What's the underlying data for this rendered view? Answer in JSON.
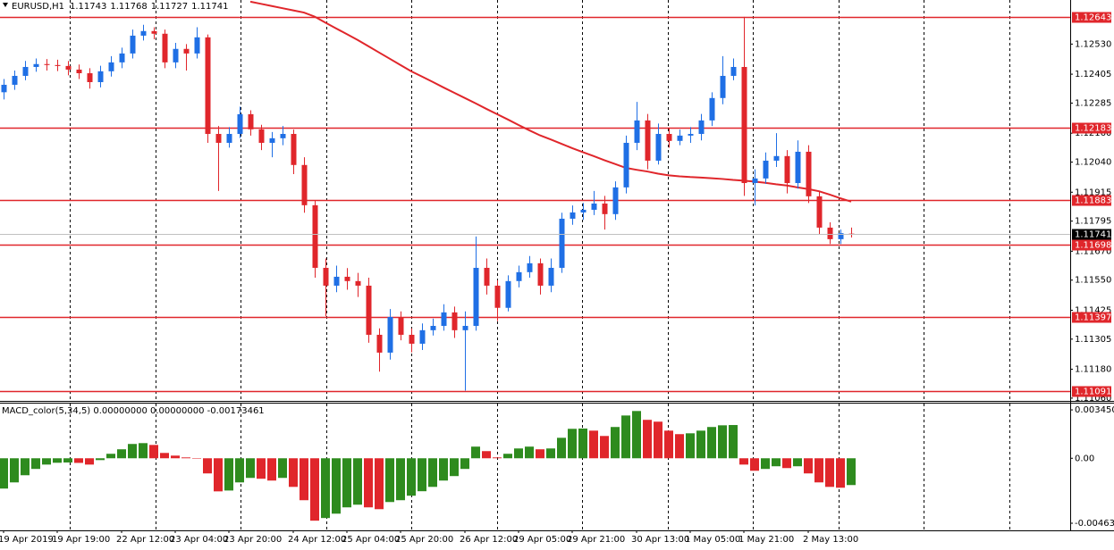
{
  "chart_data": {
    "type": "candlestick",
    "symbol": "EURUSD,H1",
    "bull_color": "#1f6fe5",
    "bear_color": "#e0262b",
    "open": [
      1.1233,
      1.12361,
      1.12398,
      1.12435,
      1.12447,
      1.12443,
      1.12439,
      1.12424,
      1.12409,
      1.12372,
      1.12417,
      1.12454,
      1.12491,
      1.12565,
      1.12584,
      1.12573,
      1.12454,
      1.1251,
      1.12491,
      1.12558,
      1.12157,
      1.1212,
      1.12157,
      1.12239,
      1.12176,
      1.1212,
      1.12139,
      1.12157,
      1.12028,
      1.11861,
      1.11601,
      1.11527,
      1.11564,
      1.11546,
      1.11527,
      1.11323,
      1.11249,
      1.11397,
      1.11323,
      1.11286,
      1.11342,
      1.1136,
      1.11416,
      1.11342,
      1.1136,
      1.11601,
      1.11527,
      1.11435,
      1.11546,
      1.11583,
      1.1162,
      1.11527,
      1.11601,
      1.11805,
      1.11831,
      1.11842,
      1.11868,
      1.11824,
      1.11935,
      1.1212,
      1.12213,
      1.12046,
      1.12157,
      1.12128,
      1.1215,
      1.12157,
      1.12213,
      1.12306,
      1.12398,
      1.12435,
      1.11953,
      1.11972,
      1.12046,
      1.12065,
      1.11953,
      1.12083,
      1.11898,
      1.11768,
      1.1172,
      1.11743
    ],
    "high": [
      1.12385,
      1.1242,
      1.1246,
      1.1247,
      1.12468,
      1.12465,
      1.1246,
      1.12445,
      1.1243,
      1.1244,
      1.1248,
      1.12515,
      1.1259,
      1.1261,
      1.126,
      1.1259,
      1.12535,
      1.1253,
      1.126,
      1.1257,
      1.1219,
      1.12185,
      1.1227,
      1.12255,
      1.12195,
      1.12165,
      1.1219,
      1.12175,
      1.1206,
      1.1188,
      1.1164,
      1.1161,
      1.116,
      1.1158,
      1.1156,
      1.1135,
      1.1143,
      1.1142,
      1.1135,
      1.1137,
      1.1139,
      1.1145,
      1.1144,
      1.1142,
      1.11731,
      1.1164,
      1.1155,
      1.1157,
      1.1161,
      1.1165,
      1.1164,
      1.1164,
      1.1183,
      1.1186,
      1.1187,
      1.1192,
      1.119,
      1.1196,
      1.1215,
      1.1229,
      1.1224,
      1.122,
      1.1218,
      1.12175,
      1.12185,
      1.1224,
      1.1233,
      1.1248,
      1.1247,
      1.12643,
      1.1201,
      1.1208,
      1.1216,
      1.1209,
      1.1213,
      1.1211,
      1.1192,
      1.1179,
      1.1176,
      1.11768
    ],
    "low": [
      1.123,
      1.1234,
      1.1238,
      1.12415,
      1.1242,
      1.12418,
      1.124,
      1.12385,
      1.12345,
      1.1235,
      1.12395,
      1.1243,
      1.1247,
      1.12545,
      1.1255,
      1.1243,
      1.1243,
      1.1242,
      1.1247,
      1.1212,
      1.1192,
      1.121,
      1.1214,
      1.1215,
      1.1209,
      1.1206,
      1.1211,
      1.1199,
      1.1183,
      1.1156,
      1.114,
      1.115,
      1.1151,
      1.1148,
      1.1129,
      1.1117,
      1.1122,
      1.113,
      1.1125,
      1.1126,
      1.1132,
      1.1134,
      1.1131,
      1.11091,
      1.1134,
      1.1149,
      1.1138,
      1.1142,
      1.1152,
      1.1156,
      1.1149,
      1.115,
      1.1158,
      1.1178,
      1.118,
      1.1182,
      1.1176,
      1.118,
      1.1191,
      1.1209,
      1.1201,
      1.1203,
      1.121,
      1.1211,
      1.1212,
      1.1213,
      1.1219,
      1.1228,
      1.1238,
      1.119,
      1.1186,
      1.1195,
      1.1202,
      1.1191,
      1.1193,
      1.1187,
      1.1174,
      1.117,
      1.117,
      1.11727
    ],
    "close": [
      1.12361,
      1.12398,
      1.12435,
      1.12447,
      1.12443,
      1.12439,
      1.12424,
      1.12409,
      1.12372,
      1.12417,
      1.12454,
      1.12491,
      1.12565,
      1.12584,
      1.12573,
      1.12454,
      1.1251,
      1.12491,
      1.12558,
      1.12157,
      1.1212,
      1.12157,
      1.12239,
      1.12176,
      1.1212,
      1.12139,
      1.12157,
      1.12028,
      1.11861,
      1.11601,
      1.11527,
      1.11564,
      1.11546,
      1.11527,
      1.11323,
      1.11249,
      1.11397,
      1.11323,
      1.11286,
      1.11342,
      1.1136,
      1.11416,
      1.11342,
      1.1136,
      1.11601,
      1.11527,
      1.11435,
      1.11546,
      1.11583,
      1.1162,
      1.11527,
      1.11601,
      1.11805,
      1.11831,
      1.11842,
      1.11868,
      1.11824,
      1.11935,
      1.1212,
      1.12213,
      1.12046,
      1.12157,
      1.12128,
      1.1215,
      1.12157,
      1.12213,
      1.12306,
      1.12398,
      1.12435,
      1.11953,
      1.11972,
      1.12046,
      1.12065,
      1.11953,
      1.12083,
      1.11898,
      1.11768,
      1.1172,
      1.11745,
      1.11741
    ],
    "ma": {
      "color": "#e0262b",
      "values": [
        null,
        null,
        null,
        null,
        null,
        null,
        null,
        null,
        null,
        null,
        null,
        null,
        null,
        null,
        null,
        null,
        null,
        null,
        null,
        null,
        null,
        null,
        null,
        1.12706,
        1.12697,
        1.12688,
        1.12679,
        1.1267,
        1.12661,
        1.12644,
        1.12619,
        1.12595,
        1.12571,
        1.12547,
        1.12521,
        1.12495,
        1.12469,
        1.12443,
        1.12417,
        1.12395,
        1.12373,
        1.1235,
        1.12328,
        1.12306,
        1.12284,
        1.12261,
        1.12239,
        1.12217,
        1.12194,
        1.12172,
        1.12151,
        1.12134,
        1.12116,
        1.12098,
        1.12081,
        1.12065,
        1.12048,
        1.12032,
        1.12016,
        1.12008,
        1.12001,
        1.11992,
        1.11985,
        1.11981,
        1.11978,
        1.11976,
        1.11973,
        1.1197,
        1.11966,
        1.11963,
        1.11959,
        1.11954,
        1.11948,
        1.11943,
        1.11935,
        1.11928,
        1.11919,
        1.11905,
        1.1189,
        1.11876
      ]
    },
    "ylim": [
      1.11056,
      1.12713
    ],
    "yticks": [
      {
        "value": 1.1253,
        "label": "1.12530"
      },
      1.12405,
      1.12285,
      {
        "value": 1.1216,
        "label": "1.12160"
      },
      {
        "value": 1.1204,
        "label": "1.12040"
      },
      1.11915,
      1.11795,
      {
        "value": 1.1167,
        "label": "1.11670"
      },
      {
        "value": 1.1155,
        "label": "1.11550"
      },
      1.11425,
      1.11305,
      {
        "value": 1.1118,
        "label": "1.11180"
      },
      {
        "value": 1.1106,
        "label": "1.11060"
      }
    ],
    "levels": {
      "color": "#e0262b",
      "values": [
        1.12643,
        1.12183,
        1.11883,
        1.11698,
        1.11397,
        1.11091
      ]
    },
    "xticks": [
      {
        "value": 0,
        "label": "19 Apr 2019"
      },
      {
        "value": 5,
        "label": "19 Apr 19:00"
      },
      {
        "value": 11,
        "label": "22 Apr 12:00"
      },
      {
        "value": 16,
        "label": "23 Apr 04:00"
      },
      {
        "value": 21,
        "label": "23 Apr 20:00"
      },
      {
        "value": 27,
        "label": "24 Apr 12:00"
      },
      {
        "value": 32,
        "label": "25 Apr 04:00"
      },
      {
        "value": 37,
        "label": "25 Apr 20:00"
      },
      {
        "value": 43,
        "label": "26 Apr 12:00"
      },
      {
        "value": 48,
        "label": "29 Apr 05:00"
      },
      {
        "value": 53,
        "label": "29 Apr 21:00"
      },
      {
        "value": 59,
        "label": "30 Apr 13:00"
      },
      {
        "value": 64,
        "label": "1 May 05:00"
      },
      {
        "value": 69,
        "label": "1 May 21:00"
      },
      {
        "value": 75,
        "label": "2 May 13:00"
      }
    ],
    "grid": true,
    "indicator": {
      "type": "bar",
      "label": "MACD_color(5,34,5) 0.00000000 0.00000000 -0.00173461",
      "up_color": "#2e8b1e",
      "down_color": "#e0262b",
      "values": [
        -0.00216,
        -0.00172,
        -0.00121,
        -0.00076,
        -0.00045,
        -0.00032,
        -0.0003,
        -0.00033,
        -0.00045,
        -0.00013,
        0.00032,
        0.00064,
        0.00102,
        0.00108,
        0.00095,
        0.00038,
        0.00019,
        6e-05,
        -2e-05,
        -0.00108,
        -0.00236,
        -0.0023,
        -0.00172,
        -0.0014,
        -0.00146,
        -0.00159,
        -0.0014,
        -0.00204,
        -0.00299,
        -0.00445,
        -0.00426,
        -0.00395,
        -0.0035,
        -0.00331,
        -0.0035,
        -0.00363,
        -0.00312,
        -0.00299,
        -0.00267,
        -0.00235,
        -0.00204,
        -0.00159,
        -0.00127,
        -0.00076,
        0.00083,
        0.00051,
        6e-05,
        0.00032,
        0.0007,
        0.00083,
        0.00064,
        0.0007,
        0.00146,
        0.0021,
        0.00212,
        0.00197,
        0.00159,
        0.00223,
        0.00305,
        0.00337,
        0.00274,
        0.00261,
        0.00197,
        0.00172,
        0.00178,
        0.00197,
        0.00223,
        0.00235,
        0.00237,
        -0.00045,
        -0.00089,
        -0.00076,
        -0.00057,
        -0.0007,
        -0.00057,
        -0.00108,
        -0.00172,
        -0.00204,
        -0.0021,
        -0.00191
      ],
      "ylim": [
        -0.00514,
        0.0039
      ],
      "yticks": [
        0.0034506,
        {
          "value": 0,
          "label": "0.00"
        },
        -0.004632
      ]
    }
  }
}
